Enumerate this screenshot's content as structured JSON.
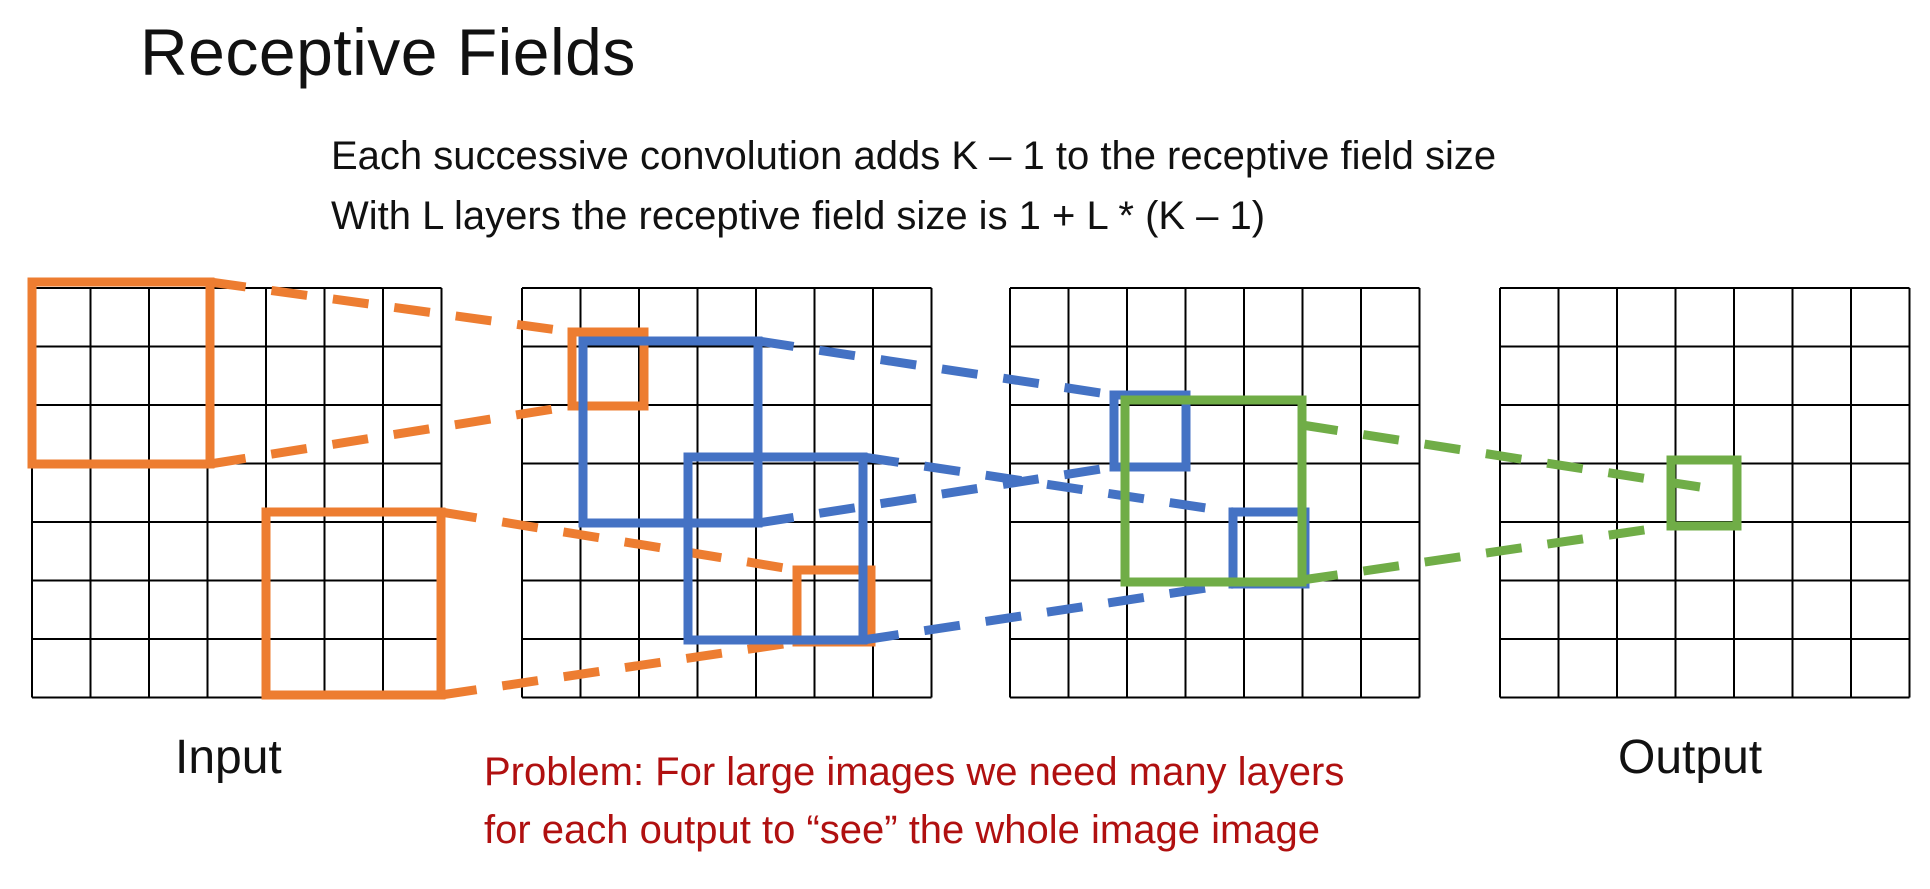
{
  "title": "Receptive Fields",
  "lines": [
    "Each successive convolution adds K – 1 to the receptive field size",
    "With L layers the receptive field size is 1 + L * (K – 1)"
  ],
  "labels": {
    "input": "Input",
    "output": "Output"
  },
  "problem": [
    "Problem: For large images we need many layers",
    "for each output to “see” the whole image image"
  ],
  "grid_size": 7,
  "colors": {
    "grid": "#000000",
    "input_field": "#ED7D31",
    "layer1_field": "#4472C4",
    "layer2_field": "#70AD47",
    "problem_text": "#B01010"
  }
}
